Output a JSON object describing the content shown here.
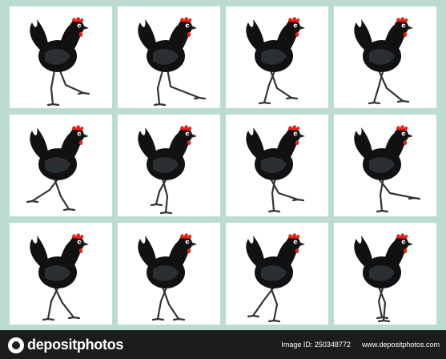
{
  "sheet": {
    "rows": 3,
    "cols": 4,
    "background_color": "#bcdcd2",
    "frame_color": "#ffffff",
    "subject": "black-hen-walk-cycle"
  },
  "colors": {
    "body": "#111111",
    "wing": "#2a2f33",
    "comb": "#e62117",
    "legs": "#333333",
    "eye": "#ffffff"
  },
  "footer": {
    "brand_name": "depositphotos",
    "image_id_label": "Image ID: 250348772",
    "site_url": "www.depositphotos.com"
  }
}
